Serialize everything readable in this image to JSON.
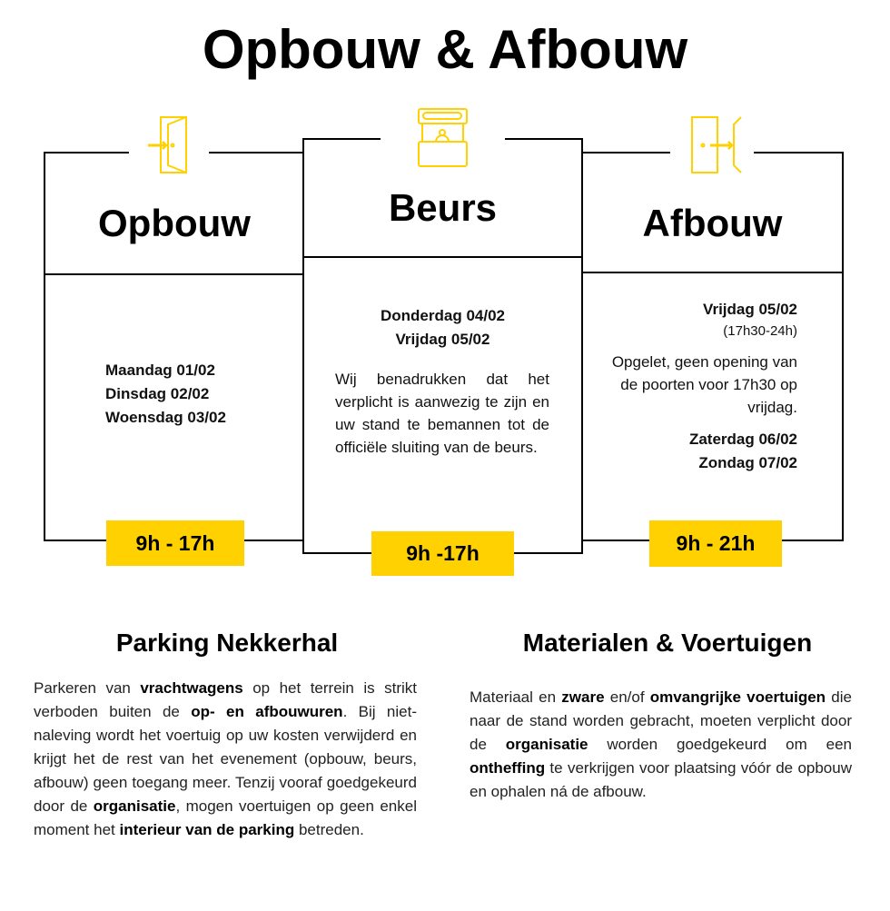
{
  "title": "Opbouw & Afbouw",
  "colors": {
    "accent": "#FFD100",
    "line": "#000000"
  },
  "columns": [
    {
      "icon": "door-enter-icon",
      "title": "Opbouw",
      "days": [
        "Maandag 01/02",
        "Dinsdag 02/02",
        "Woensdag 03/02"
      ],
      "hours": "9h - 17h"
    },
    {
      "icon": "booth-icon",
      "title": "Beurs",
      "days": [
        "Donderdag 04/02",
        "Vrijdag 05/02"
      ],
      "note": "Wij benadrukken dat het verplicht is aanwezig te zijn en uw stand te bemannen tot de officiële sluiting van de beurs.",
      "hours": "9h -17h"
    },
    {
      "icon": "door-exit-icon",
      "title": "Afbouw",
      "days": [
        "Vrijdag 05/02",
        "Zaterdag 06/02",
        "Zondag 07/02"
      ],
      "time_note": "(17h30-24h)",
      "note": "Opgelet, geen opening van de poorten voor 17h30 op vrijdag.",
      "hours": "9h - 21h"
    }
  ],
  "parking": {
    "title": "Parking Nekkerhal",
    "segments": [
      {
        "t": "Parkeren van ",
        "b": false
      },
      {
        "t": "vrachtwagens",
        "b": true
      },
      {
        "t": " op het terrein is strikt verboden buiten de ",
        "b": false
      },
      {
        "t": "op- en afbouwuren",
        "b": true
      },
      {
        "t": ". Bij niet-naleving wordt het voertuig op uw kosten verwijderd en krijgt het de rest van het evenement (opbouw, beurs, afbouw) geen toegang meer. Tenzij vooraf goedgekeurd door de ",
        "b": false
      },
      {
        "t": "organisatie",
        "b": true
      },
      {
        "t": ", mogen voertuigen op geen enkel moment het ",
        "b": false
      },
      {
        "t": "interieur van de parking",
        "b": true
      },
      {
        "t": " betreden.",
        "b": false
      }
    ]
  },
  "materials": {
    "title": "Materialen & Voertuigen",
    "segments": [
      {
        "t": "Materiaal en ",
        "b": false
      },
      {
        "t": "zware",
        "b": true
      },
      {
        "t": " en/of ",
        "b": false
      },
      {
        "t": "omvangrijke voertuigen",
        "b": true
      },
      {
        "t": " die naar de stand worden gebracht, moeten verplicht door de ",
        "b": false
      },
      {
        "t": "organisatie",
        "b": true
      },
      {
        "t": " worden goedgekeurd om een ",
        "b": false
      },
      {
        "t": "ontheffing",
        "b": true
      },
      {
        "t": " te verkrijgen voor plaatsing vóór de opbouw en ophalen ná de afbouw.",
        "b": false
      }
    ]
  }
}
